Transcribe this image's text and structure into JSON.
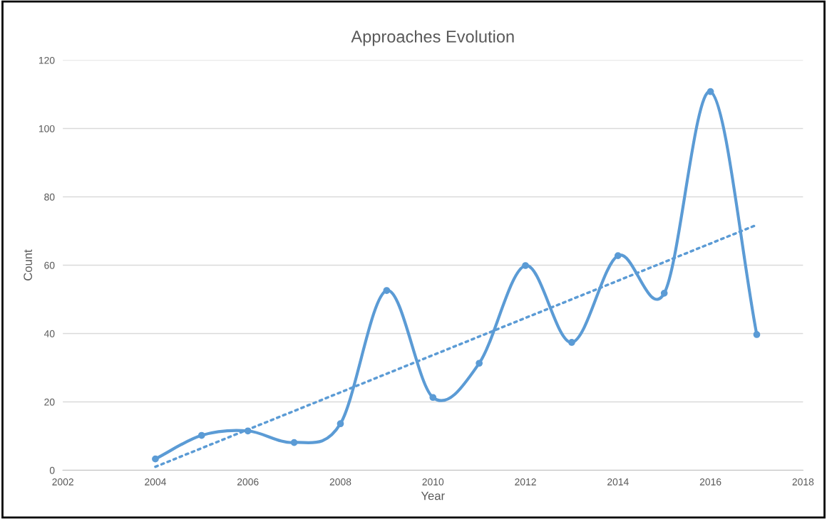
{
  "chart_data": {
    "type": "line",
    "title": "Approaches Evolution",
    "xlabel": "Year",
    "ylabel": "Count",
    "x": [
      2004,
      2005,
      2006,
      2007,
      2008,
      2009,
      2010,
      2011,
      2012,
      2013,
      2014,
      2015,
      2016,
      2017
    ],
    "series": [
      {
        "color": "#5b9bd5",
        "marker": "circle",
        "line_style": "solid",
        "values": [
          3.3,
          10.2,
          11.5,
          8.1,
          13.6,
          52.6,
          21.3,
          31.3,
          59.9,
          37.4,
          62.8,
          51.8,
          110.8,
          39.7
        ]
      },
      {
        "color": "#5b9bd5",
        "marker": "none",
        "line_style": "dotted",
        "x": [
          2004,
          2017
        ],
        "values": [
          1,
          71.8
        ]
      }
    ],
    "xlim": [
      2002,
      2018
    ],
    "xticks": [
      2002,
      2004,
      2006,
      2008,
      2010,
      2012,
      2014,
      2016,
      2018
    ],
    "ylim": [
      0,
      120
    ],
    "yticks": [
      0,
      20,
      40,
      60,
      80,
      100,
      120
    ],
    "grid": "y",
    "legend": false
  }
}
